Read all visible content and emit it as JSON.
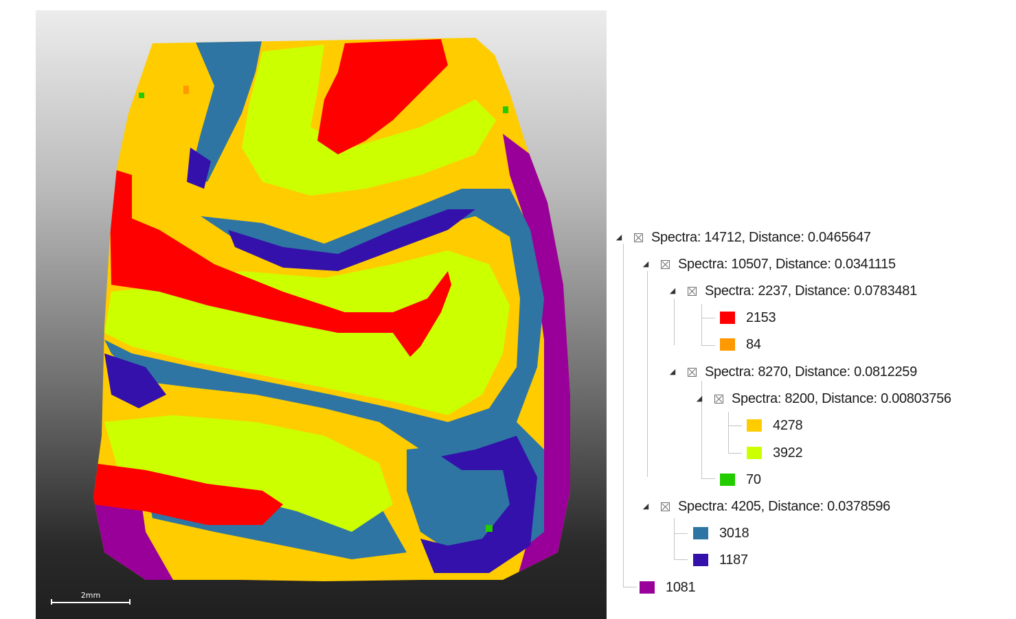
{
  "scale_bar": {
    "label": "2mm"
  },
  "colors": {
    "red": "#ff0000",
    "orange": "#ff9900",
    "yellow": "#ffcc00",
    "lime": "#ccff00",
    "green": "#22cc00",
    "steel": "#2f75a3",
    "indigo": "#3311aa",
    "purple": "#990099"
  },
  "tree": {
    "root": {
      "label": "Spectra: 14712, Distance: 0.0465647"
    },
    "n1": {
      "label": "Spectra: 10507, Distance: 0.0341115"
    },
    "n2": {
      "label": "Spectra: 2237, Distance: 0.0783481"
    },
    "leaf_red": {
      "label": "2153",
      "color": "#ff0000"
    },
    "leaf_orange": {
      "label": "84",
      "color": "#ff9900"
    },
    "n3": {
      "label": "Spectra: 8270, Distance: 0.0812259"
    },
    "n4": {
      "label": "Spectra: 8200, Distance: 0.00803756"
    },
    "leaf_yellow": {
      "label": "4278",
      "color": "#ffcc00"
    },
    "leaf_lime": {
      "label": "3922",
      "color": "#ccff00"
    },
    "leaf_green": {
      "label": "70",
      "color": "#22cc00"
    },
    "n5": {
      "label": "Spectra: 4205, Distance: 0.0378596"
    },
    "leaf_steel": {
      "label": "3018",
      "color": "#2f75a3"
    },
    "leaf_indigo": {
      "label": "1187",
      "color": "#3311aa"
    },
    "leaf_purple": {
      "label": "1081",
      "color": "#990099"
    }
  }
}
